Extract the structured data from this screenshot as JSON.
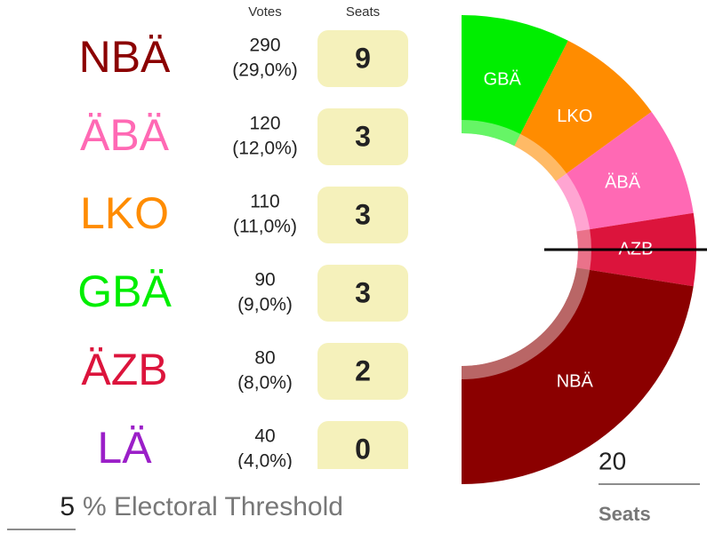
{
  "header": {
    "votes": "Votes",
    "seats": "Seats"
  },
  "parties": [
    {
      "name": "NBÄ",
      "color": "#8b0000",
      "votes": 290,
      "share": "(29,0%)",
      "seats": 9
    },
    {
      "name": "ÄBÄ",
      "color": "#ff69b4",
      "votes": 120,
      "share": "(12,0%)",
      "seats": 3
    },
    {
      "name": "LKO",
      "color": "#ff8c00",
      "votes": 110,
      "share": "(11,0%)",
      "seats": 3
    },
    {
      "name": "GBÄ",
      "color": "#00ee00",
      "votes": 90,
      "share": "(9,0%)",
      "seats": 3
    },
    {
      "name": "ÄZB",
      "color": "#dc143c",
      "votes": 80,
      "share": "(8,0%)",
      "seats": 2
    },
    {
      "name": "LÄ",
      "color": "#9b1fc8",
      "votes": 40,
      "share": "(4,0%)",
      "seats": 0
    }
  ],
  "chart": {
    "segments": [
      {
        "label": "GBÄ",
        "party": 3
      },
      {
        "label": "LKO",
        "party": 2
      },
      {
        "label": "ÄBÄ",
        "party": 1
      },
      {
        "label": "AZB",
        "party": 4
      },
      {
        "label": "NBÄ",
        "party": 0
      }
    ]
  },
  "threshold": {
    "value": 5,
    "label": "% Electoral Threshold"
  },
  "total_seats": {
    "value": 20,
    "label": "Seats"
  }
}
